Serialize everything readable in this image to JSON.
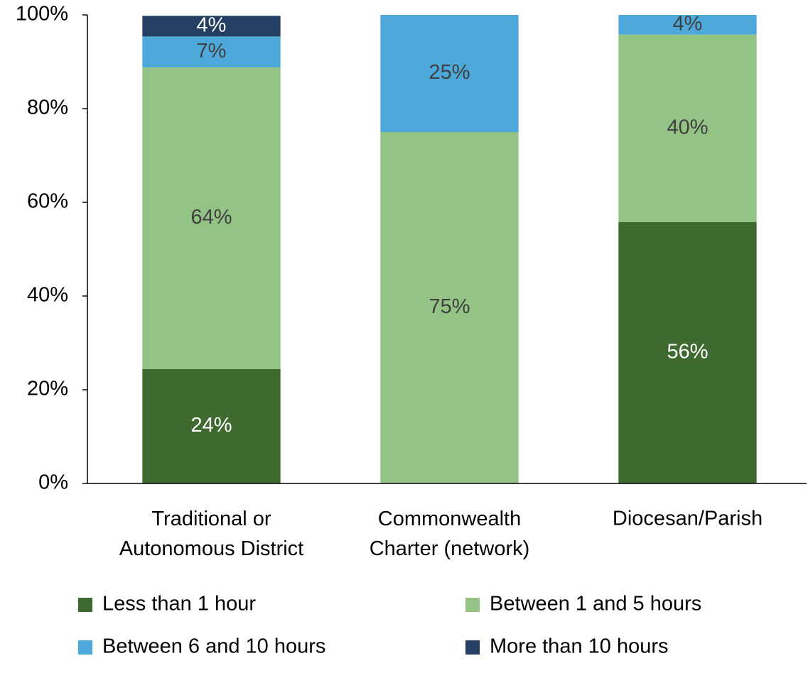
{
  "chart_data": {
    "type": "stacked_bar",
    "categories": [
      "Traditional or\nAutonomous District",
      "Commonwealth\nCharter (network)",
      "Diocesan/Parish"
    ],
    "series": [
      {
        "name": "Less than 1 hour",
        "color": "#3e6a30",
        "label_color": "#ffffff",
        "values": [
          24.4,
          0,
          55.8
        ],
        "value_labels": [
          "24%",
          null,
          "56%"
        ]
      },
      {
        "name": "Between 1 and 5 hours",
        "color": "#93c385",
        "label_color": "#404040",
        "values": [
          64.4,
          75,
          40
        ],
        "value_labels": [
          "64%",
          "75%",
          "40%"
        ]
      },
      {
        "name": "Between 6 and 10 hours",
        "color": "#4ea9db",
        "label_color": "#404040",
        "values": [
          6.6,
          25,
          4.2
        ],
        "value_labels": [
          "7%",
          "25%",
          "4%"
        ]
      },
      {
        "name": "More than 10 hours",
        "color": "#243f62",
        "label_color": "#ffffff",
        "values": [
          4.4,
          0,
          0
        ],
        "value_labels": [
          "4%",
          null,
          null
        ]
      }
    ],
    "ylim": [
      0,
      100
    ],
    "yticks": [
      {
        "value": 0,
        "label": "0%"
      },
      {
        "value": 20,
        "label": "20%"
      },
      {
        "value": 40,
        "label": "40%"
      },
      {
        "value": 60,
        "label": "60%"
      },
      {
        "value": 80,
        "label": "80%"
      },
      {
        "value": 100,
        "label": "100%"
      }
    ],
    "legend": "bottom"
  }
}
